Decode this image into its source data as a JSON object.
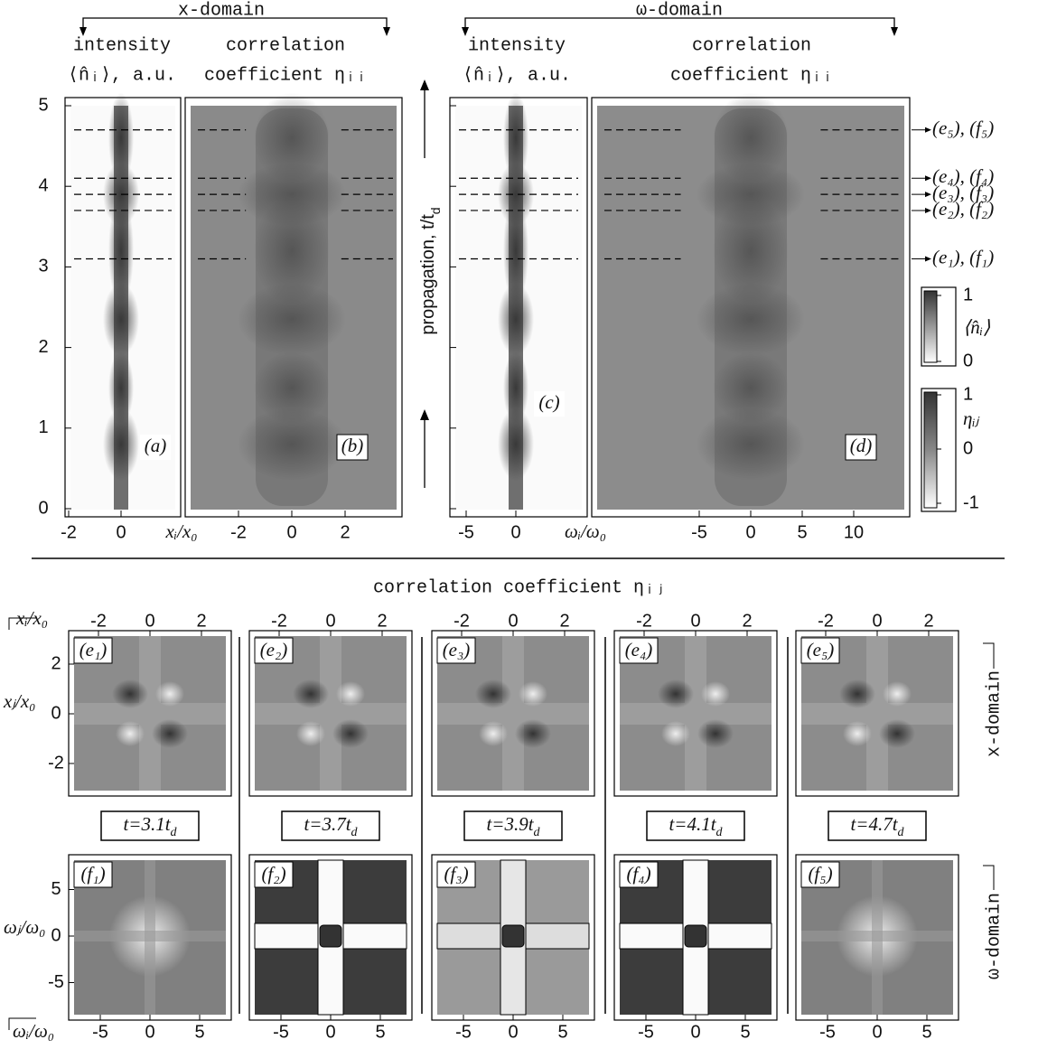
{
  "top": {
    "x_domain_label": "x-domain",
    "omega_domain_label": "ω-domain",
    "columns": [
      {
        "header": "intensity",
        "subheader": "⟨n̂ᵢ⟩, a.u."
      },
      {
        "header": "correlation",
        "subheader": "coefficient ηᵢᵢ"
      },
      {
        "header": "intensity",
        "subheader": "⟨n̂ᵢ⟩, a.u."
      },
      {
        "header": "correlation",
        "subheader": "coefficient ηᵢᵢ"
      }
    ],
    "y_axis_label": {
      "text": "propagation, t/t",
      "sub": "d"
    },
    "yticks": [
      0,
      1,
      2,
      3,
      4,
      5
    ],
    "panels": [
      {
        "label": "(a)",
        "xticks": [
          -2,
          0
        ]
      },
      {
        "label": "(b)",
        "xticks": [
          -2,
          0,
          2
        ]
      },
      {
        "label": "(c)",
        "xticks": [
          -5,
          0
        ]
      },
      {
        "label": "(d)",
        "xticks": [
          -5,
          0,
          5,
          10
        ]
      }
    ],
    "x_axis_labels": [
      "xᵢ/x₀",
      "ωᵢ/ω₀"
    ],
    "slices": [
      {
        "t": 3.1,
        "label": "(e₁), (f₁)"
      },
      {
        "t": 3.7,
        "label": "(e₂), (f₂)"
      },
      {
        "t": 3.9,
        "label": "(e₃), (f₃)"
      },
      {
        "t": 4.1,
        "label": "(e₄), (f₄)"
      },
      {
        "t": 4.7,
        "label": "(e₅), (f₅)"
      }
    ],
    "colorbars": [
      {
        "label": "⟨n̂ᵢ⟩",
        "ticks": [
          0,
          1
        ]
      },
      {
        "label": "ηᵢⱼ",
        "ticks": [
          -1,
          0,
          1
        ]
      }
    ]
  },
  "bottom": {
    "title": "correlation coefficient ηᵢⱼ",
    "columns": [
      {
        "e_label": "(e₁)",
        "f_label": "(f₁)",
        "time": {
          "text": "t=3.1t",
          "sub": "d"
        }
      },
      {
        "e_label": "(e₂)",
        "f_label": "(f₂)",
        "time": {
          "text": "t=3.7t",
          "sub": "d"
        }
      },
      {
        "e_label": "(e₃)",
        "f_label": "(f₃)",
        "time": {
          "text": "t=3.9t",
          "sub": "d"
        }
      },
      {
        "e_label": "(e₄)",
        "f_label": "(f₄)",
        "time": {
          "text": "t=4.1t",
          "sub": "d"
        }
      },
      {
        "e_label": "(e₅)",
        "f_label": "(f₅)",
        "time": {
          "text": "t=4.7t",
          "sub": "d"
        }
      }
    ],
    "x_ticks": [
      -2,
      0,
      2
    ],
    "omega_ticks": [
      -5,
      0,
      5
    ],
    "x_i_label": "xᵢ/x₀",
    "x_j_label": "xⱼ/x₀",
    "omega_i_label": "ωᵢ/ω₀",
    "omega_j_label": "ωⱼ/ω₀",
    "right_x_label": "x-domain",
    "right_omega_label": "ω-domain"
  }
}
